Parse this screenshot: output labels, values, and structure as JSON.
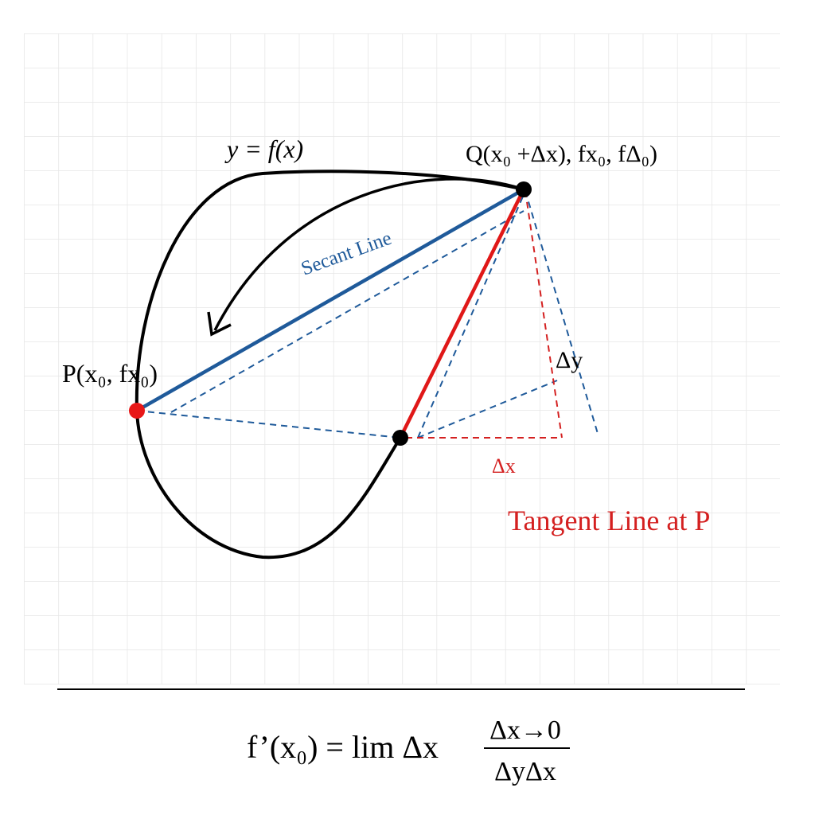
{
  "diagram": {
    "curve_label": "y = f(x)",
    "point_q_label": "Q(x₀ +Δx), fx₀, fΔ₀)",
    "secant_label": "Secant Line",
    "point_p_label": "P(x₀, fx₀)",
    "delta_y_label": "Δy",
    "delta_x_label": "Δx",
    "tangent_label": "Tangent Line at P"
  },
  "formula": {
    "left": "f’(x₀) = lim Δx",
    "numerator": "Δx→0",
    "denominator": "ΔyΔx"
  }
}
